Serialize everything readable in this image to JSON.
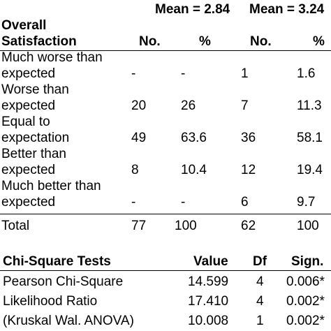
{
  "table": {
    "means": [
      "Mean = 2.84",
      "Mean = 3.24"
    ],
    "header": {
      "label_line1": "Overall",
      "label_line2": "Satisfaction",
      "col_no_1": "No.",
      "col_pct_1": "%",
      "col_no_2": "No.",
      "col_pct_2": "%"
    },
    "rows": [
      {
        "label_line1": "Much worse than",
        "label_line2": "expected",
        "no1": "-",
        "pct1": "-",
        "no2": "1",
        "pct2": "1.6"
      },
      {
        "label_line1": "Worse than",
        "label_line2": "expected",
        "no1": "20",
        "pct1": "26",
        "no2": "7",
        "pct2": "11.3"
      },
      {
        "label_line1": "Equal to",
        "label_line2": "expectation",
        "no1": "49",
        "pct1": "63.6",
        "no2": "36",
        "pct2": "58.1"
      },
      {
        "label_line1": "Better than",
        "label_line2": "expected",
        "no1": "8",
        "pct1": "10.4",
        "no2": "12",
        "pct2": "19.4"
      },
      {
        "label_line1": "Much better than",
        "label_line2": "expected",
        "no1": "-",
        "pct1": "-",
        "no2": "6",
        "pct2": "9.7"
      }
    ],
    "total": {
      "label": "Total",
      "no1": "77",
      "pct1": "100",
      "no2": "62",
      "pct2": "100"
    }
  },
  "chi": {
    "header": {
      "label": "Chi-Square Tests",
      "value": "Value",
      "df": "Df",
      "sign": "Sign."
    },
    "rows": [
      {
        "label": "Pearson Chi-Square",
        "value": "14.599",
        "df": "4",
        "sign": "0.006*"
      },
      {
        "label": "Likelihood Ratio",
        "value": "17.410",
        "df": "4",
        "sign": "0.002*"
      },
      {
        "label": "(Kruskal Wal. ANOVA)",
        "value": "10.008",
        "df": "1",
        "sign": "0.002*"
      }
    ]
  }
}
